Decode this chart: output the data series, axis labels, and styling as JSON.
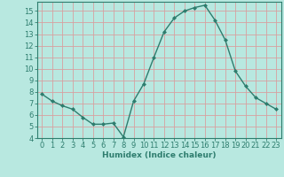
{
  "x": [
    0,
    1,
    2,
    3,
    4,
    5,
    6,
    7,
    8,
    9,
    10,
    11,
    12,
    13,
    14,
    15,
    16,
    17,
    18,
    19,
    20,
    21,
    22,
    23
  ],
  "y": [
    7.8,
    7.2,
    6.8,
    6.5,
    5.8,
    5.2,
    5.2,
    5.3,
    4.1,
    7.2,
    8.7,
    11.0,
    13.2,
    14.4,
    15.0,
    15.3,
    15.5,
    14.2,
    12.5,
    9.8,
    8.5,
    7.5,
    7.0,
    6.5
  ],
  "line_color": "#2e7d6e",
  "marker": "D",
  "marker_size": 2.0,
  "bg_color": "#b8e8e0",
  "grid_color": "#d8a0a0",
  "xlabel": "Humidex (Indice chaleur)",
  "ylim": [
    4,
    15.8
  ],
  "xlim": [
    -0.5,
    23.5
  ],
  "yticks": [
    4,
    5,
    6,
    7,
    8,
    9,
    10,
    11,
    12,
    13,
    14,
    15
  ],
  "xticks": [
    0,
    1,
    2,
    3,
    4,
    5,
    6,
    7,
    8,
    9,
    10,
    11,
    12,
    13,
    14,
    15,
    16,
    17,
    18,
    19,
    20,
    21,
    22,
    23
  ],
  "label_fontsize": 6.5,
  "tick_fontsize": 6.0
}
